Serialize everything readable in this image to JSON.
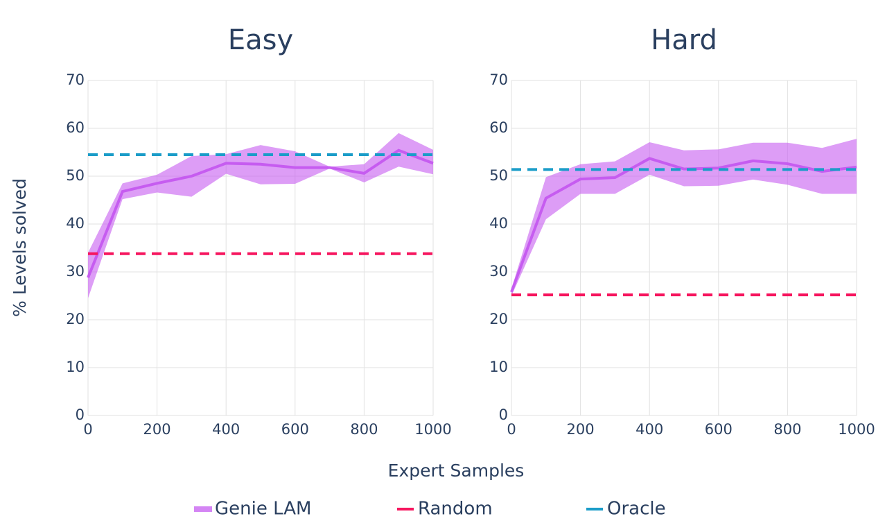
{
  "chart_data": [
    {
      "type": "line",
      "title": "Easy",
      "xlabel": "Expert Samples",
      "ylabel": "% Levels solved",
      "x": [
        0,
        100,
        200,
        300,
        400,
        500,
        600,
        700,
        800,
        900,
        1000
      ],
      "xlim": [
        0,
        1000
      ],
      "xticks": [
        0,
        200,
        400,
        600,
        800,
        1000
      ],
      "ylim": [
        0,
        70
      ],
      "yticks": [
        0,
        10,
        20,
        30,
        40,
        50,
        60,
        70
      ],
      "grid": true,
      "series": [
        {
          "name": "Genie LAM",
          "color": "#c65cf0",
          "values": [
            28.8,
            46.8,
            48.5,
            50,
            52.7,
            52.5,
            51.8,
            51.8,
            50.6,
            55.4,
            52.7
          ],
          "upper": [
            34,
            48.5,
            50.3,
            54.2,
            54.6,
            56.5,
            55.2,
            52,
            52.5,
            59,
            55.5
          ],
          "lower": [
            24.5,
            45.2,
            46.6,
            45.7,
            50.5,
            48.3,
            48.4,
            51.6,
            48.7,
            52,
            50.4
          ]
        },
        {
          "name": "Random",
          "color": "#f6155e",
          "dash": true,
          "values": [
            33.8,
            33.8,
            33.8,
            33.8,
            33.8,
            33.8,
            33.8,
            33.8,
            33.8,
            33.8,
            33.8
          ]
        },
        {
          "name": "Oracle",
          "color": "#1a9cc8",
          "dash": true,
          "values": [
            54.5,
            54.5,
            54.5,
            54.5,
            54.5,
            54.5,
            54.5,
            54.5,
            54.5,
            54.5,
            54.5
          ]
        }
      ]
    },
    {
      "type": "line",
      "title": "Hard",
      "x": [
        0,
        100,
        200,
        300,
        400,
        500,
        600,
        700,
        800,
        900,
        1000
      ],
      "xlim": [
        0,
        1000
      ],
      "xticks": [
        0,
        200,
        400,
        600,
        800,
        1000
      ],
      "ylim": [
        0,
        70
      ],
      "yticks": [
        0,
        10,
        20,
        30,
        40,
        50,
        60,
        70
      ],
      "grid": true,
      "series": [
        {
          "name": "Genie LAM",
          "color": "#c65cf0",
          "values": [
            25.8,
            45.4,
            49.4,
            49.7,
            53.7,
            51.5,
            51.7,
            53.2,
            52.6,
            51,
            51.9
          ],
          "upper": [
            26.5,
            49.8,
            52.5,
            53.1,
            57.1,
            55.4,
            55.6,
            57,
            57,
            55.9,
            57.8
          ],
          "lower": [
            25,
            41,
            46.3,
            46.3,
            50.3,
            47.9,
            48,
            49.3,
            48.2,
            46.3,
            46.3
          ]
        },
        {
          "name": "Random",
          "color": "#f6155e",
          "dash": true,
          "values": [
            25.2,
            25.2,
            25.2,
            25.2,
            25.2,
            25.2,
            25.2,
            25.2,
            25.2,
            25.2,
            25.2
          ]
        },
        {
          "name": "Oracle",
          "color": "#1a9cc8",
          "dash": true,
          "values": [
            51.4,
            51.4,
            51.4,
            51.4,
            51.4,
            51.4,
            51.4,
            51.4,
            51.4,
            51.4,
            51.4
          ]
        }
      ]
    }
  ]
}
